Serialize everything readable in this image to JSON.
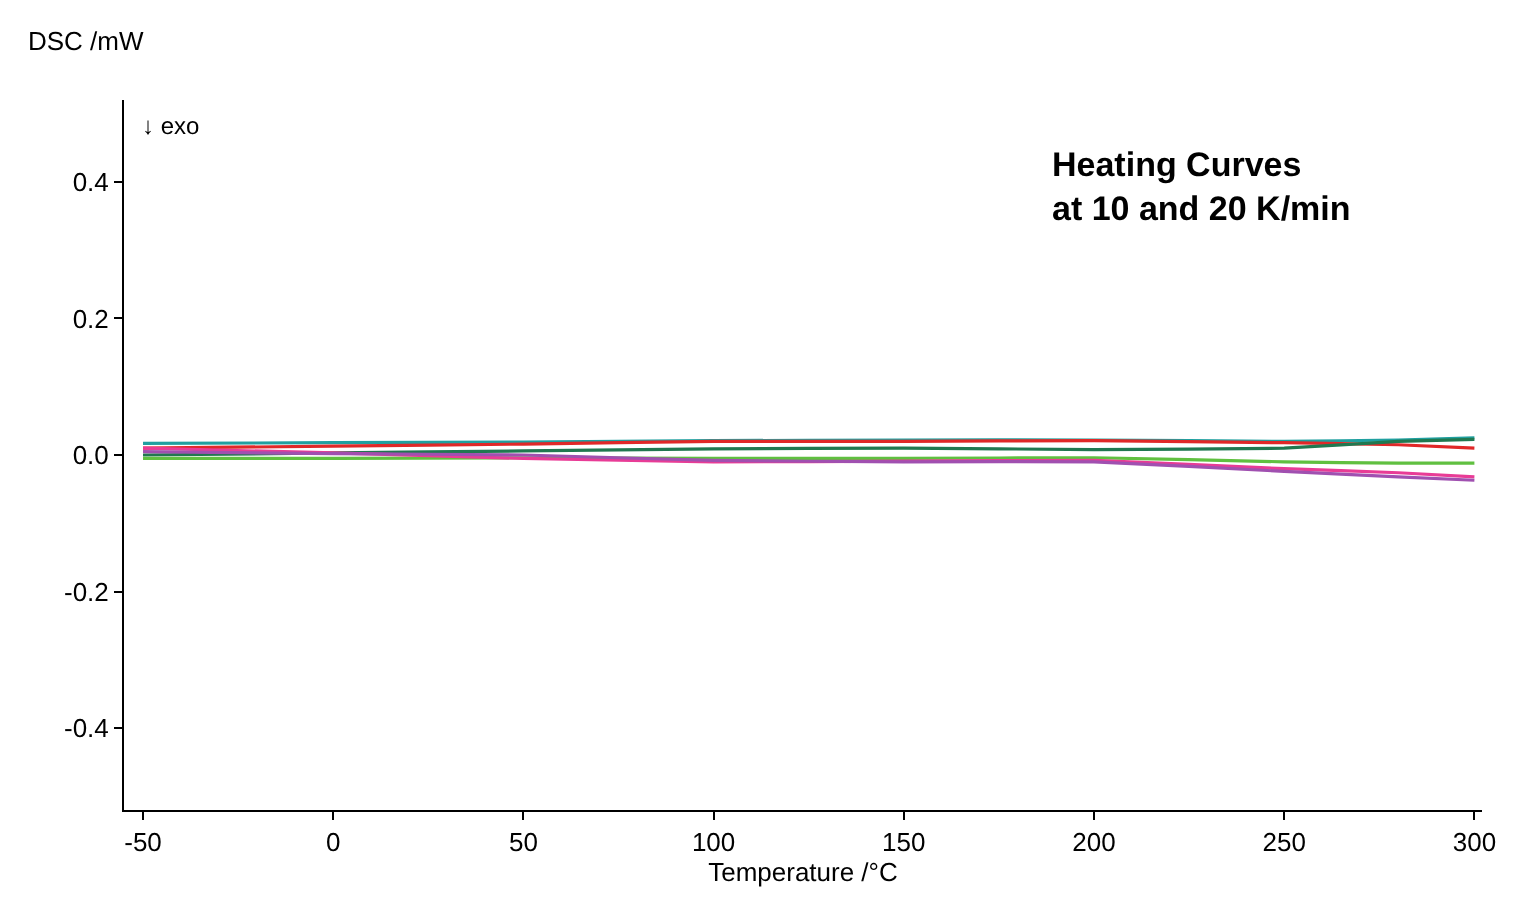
{
  "chart_data": {
    "type": "line",
    "xlabel": "Temperature /°C",
    "ylabel": "DSC /mW",
    "annotations": [
      "↓ exo",
      "Heating Curves\nat 10 and 20 K/min"
    ],
    "x": [
      -50,
      0,
      50,
      100,
      150,
      200,
      250,
      280,
      300
    ],
    "series": [
      {
        "color": "#20a0a0",
        "values": [
          0.017,
          0.018,
          0.019,
          0.021,
          0.022,
          0.022,
          0.02,
          0.022,
          0.025
        ]
      },
      {
        "color": "#e02828",
        "values": [
          0.01,
          0.013,
          0.016,
          0.02,
          0.02,
          0.021,
          0.018,
          0.015,
          0.01
        ]
      },
      {
        "color": "#207850",
        "values": [
          0.0,
          0.003,
          0.006,
          0.009,
          0.01,
          0.008,
          0.01,
          0.02,
          0.023
        ]
      },
      {
        "color": "#60c040",
        "values": [
          -0.005,
          -0.005,
          -0.004,
          -0.005,
          -0.005,
          -0.004,
          -0.01,
          -0.012,
          -0.012
        ]
      },
      {
        "color": "#e83c96",
        "values": [
          0.01,
          0.003,
          -0.005,
          -0.01,
          -0.009,
          -0.008,
          -0.02,
          -0.026,
          -0.032
        ]
      },
      {
        "color": "#a050b0",
        "values": [
          0.005,
          0.002,
          0.0,
          -0.008,
          -0.01,
          -0.01,
          -0.024,
          -0.032,
          -0.037
        ]
      }
    ],
    "xlim": [
      -55,
      302
    ],
    "xticks": [
      -50,
      0,
      50,
      100,
      150,
      200,
      250,
      300
    ],
    "ylim": [
      -0.52,
      0.52
    ],
    "yticks": [
      {
        "value": -0.4,
        "label": "-0.4"
      },
      {
        "value": -0.2,
        "label": "-0.2"
      },
      {
        "value": 0,
        "label": "0.0"
      },
      {
        "value": 0.2,
        "label": "0.2"
      },
      {
        "value": 0.4,
        "label": "0.4"
      }
    ],
    "marker": "none",
    "line_style": "solid"
  }
}
